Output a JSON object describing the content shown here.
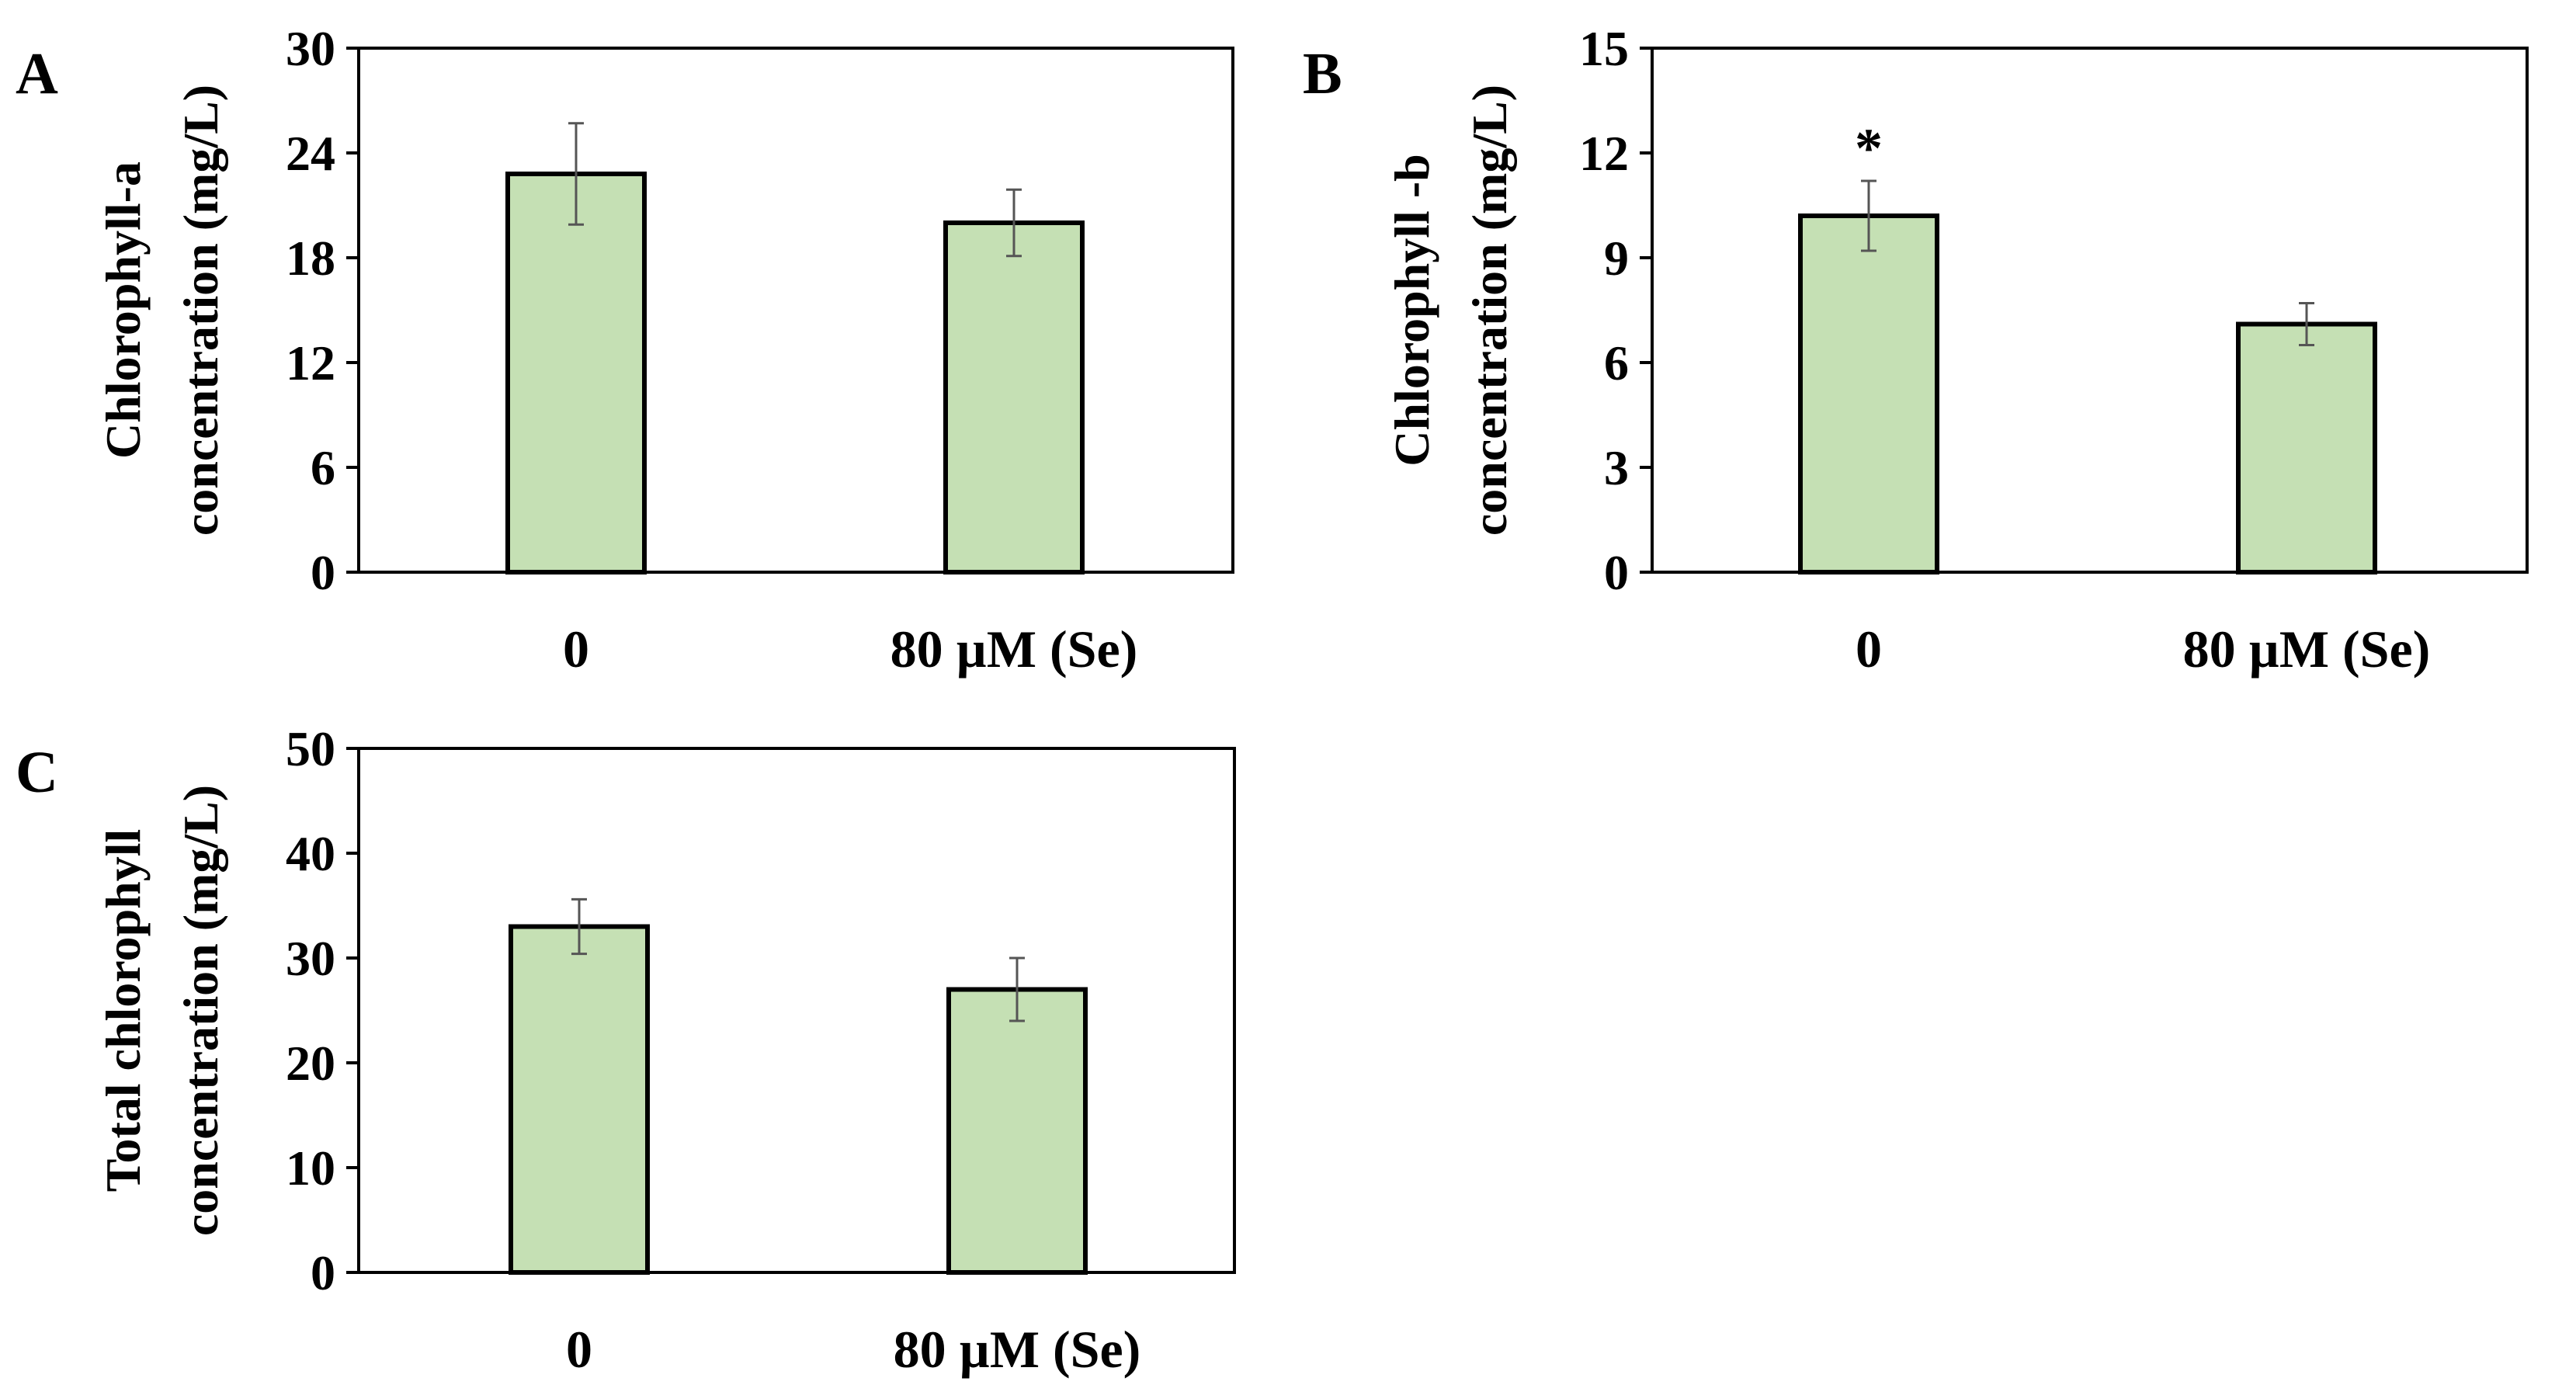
{
  "figure": {
    "panels": [
      {
        "label": "A",
        "chart_type": "bar",
        "ylabel_lines": [
          "Chlorophyll-a",
          "concentration (mg/L)"
        ],
        "categories": [
          "0",
          "80  µM (Se)"
        ],
        "values": [
          22.8,
          20.0
        ],
        "errors": [
          2.9,
          1.9
        ],
        "ylim": [
          0,
          30
        ],
        "yticks": [
          "0",
          "6",
          "12",
          "18",
          "24",
          "30"
        ],
        "significance": [
          "",
          ""
        ]
      },
      {
        "label": "B",
        "chart_type": "bar",
        "ylabel_lines": [
          "Chlorophyll -b",
          "concentration (mg/L)"
        ],
        "categories": [
          "0",
          "80  µM (Se)"
        ],
        "values": [
          10.2,
          7.1
        ],
        "errors": [
          1.0,
          0.6
        ],
        "ylim": [
          0,
          15
        ],
        "yticks": [
          "0",
          "3",
          "6",
          "9",
          "12",
          "15"
        ],
        "significance": [
          "*",
          ""
        ]
      },
      {
        "label": "C",
        "chart_type": "bar",
        "ylabel_lines": [
          "Total chlorophyll",
          "concentration (mg/L)"
        ],
        "categories": [
          "0",
          "80  µM (Se)"
        ],
        "values": [
          33.0,
          27.0
        ],
        "errors": [
          2.6,
          3.0
        ],
        "ylim": [
          0,
          50
        ],
        "yticks": [
          "0",
          "10",
          "20",
          "30",
          "40",
          "50"
        ],
        "significance": [
          "",
          ""
        ]
      }
    ],
    "colors": {
      "bar_fill": "#c5e0b4",
      "bar_stroke": "#000000",
      "error_bar": "#555555",
      "axis": "#000000"
    }
  },
  "chart_data": [
    {
      "type": "bar",
      "title": "A",
      "xlabel": "",
      "ylabel": "Chlorophyll-a concentration (mg/L)",
      "categories": [
        "0",
        "80  µM (Se)"
      ],
      "series": [
        {
          "name": "Chlorophyll-a",
          "values": [
            22.8,
            20.0
          ],
          "errors": [
            2.9,
            1.9
          ]
        }
      ],
      "ylim": [
        0,
        30
      ],
      "yticks": [
        0,
        6,
        12,
        18,
        24,
        30
      ],
      "grid": false,
      "annotations": []
    },
    {
      "type": "bar",
      "title": "B",
      "xlabel": "",
      "ylabel": "Chlorophyll -b concentration (mg/L)",
      "categories": [
        "0",
        "80  µM (Se)"
      ],
      "series": [
        {
          "name": "Chlorophyll-b",
          "values": [
            10.2,
            7.1
          ],
          "errors": [
            1.0,
            0.6
          ]
        }
      ],
      "ylim": [
        0,
        15
      ],
      "yticks": [
        0,
        3,
        6,
        9,
        12,
        15
      ],
      "grid": false,
      "annotations": [
        {
          "category": "0",
          "text": "*"
        }
      ]
    },
    {
      "type": "bar",
      "title": "C",
      "xlabel": "",
      "ylabel": "Total chlorophyll concentration (mg/L)",
      "categories": [
        "0",
        "80  µM (Se)"
      ],
      "series": [
        {
          "name": "Total chlorophyll",
          "values": [
            33.0,
            27.0
          ],
          "errors": [
            2.6,
            3.0
          ]
        }
      ],
      "ylim": [
        0,
        50
      ],
      "yticks": [
        0,
        10,
        20,
        30,
        40,
        50
      ],
      "grid": false,
      "annotations": []
    }
  ]
}
